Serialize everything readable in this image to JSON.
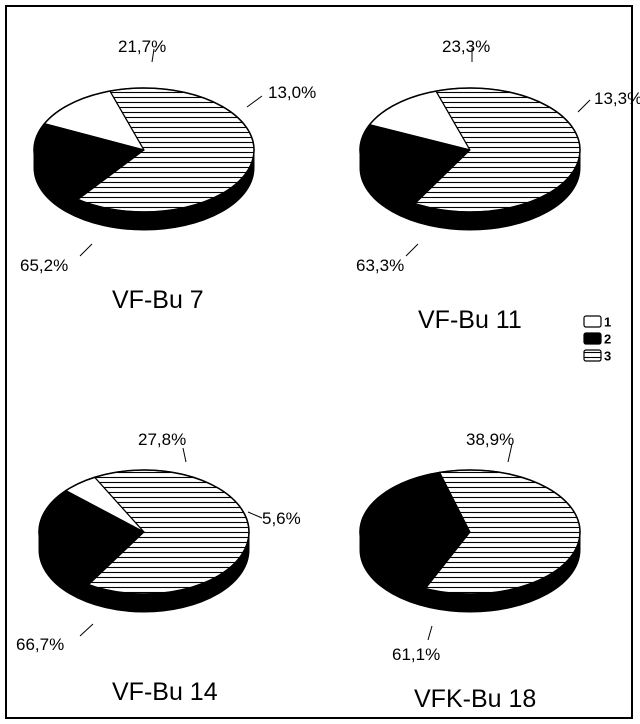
{
  "colors": {
    "black": "#000000",
    "white": "#ffffff"
  },
  "legend": {
    "position": "right-middle",
    "items": [
      {
        "label": "1",
        "fill": "white"
      },
      {
        "label": "2",
        "fill": "black"
      },
      {
        "label": "3",
        "fill": "horizontal-hatch"
      }
    ]
  },
  "chart_data": [
    {
      "type": "pie",
      "title": "VF-Bu 7",
      "slices": [
        {
          "series": "1",
          "value": 13.0,
          "label": "13,0%"
        },
        {
          "series": "2",
          "value": 21.7,
          "label": "21,7%"
        },
        {
          "series": "3",
          "value": 65.2,
          "label": "65,2%"
        }
      ]
    },
    {
      "type": "pie",
      "title": "VF-Bu 11",
      "slices": [
        {
          "series": "1",
          "value": 13.3,
          "label": "13,3%"
        },
        {
          "series": "2",
          "value": 23.3,
          "label": "23,3%"
        },
        {
          "series": "3",
          "value": 63.3,
          "label": "63,3%"
        }
      ]
    },
    {
      "type": "pie",
      "title": "VF-Bu 14",
      "slices": [
        {
          "series": "1",
          "value": 5.6,
          "label": "5,6%"
        },
        {
          "series": "2",
          "value": 27.8,
          "label": "27,8%"
        },
        {
          "series": "3",
          "value": 66.7,
          "label": "66,7%"
        }
      ]
    },
    {
      "type": "pie",
      "title": "VFK-Bu 18",
      "slices": [
        {
          "series": "2",
          "value": 38.9,
          "label": "38,9%"
        },
        {
          "series": "3",
          "value": 61.1,
          "label": "61,1%"
        }
      ]
    }
  ]
}
